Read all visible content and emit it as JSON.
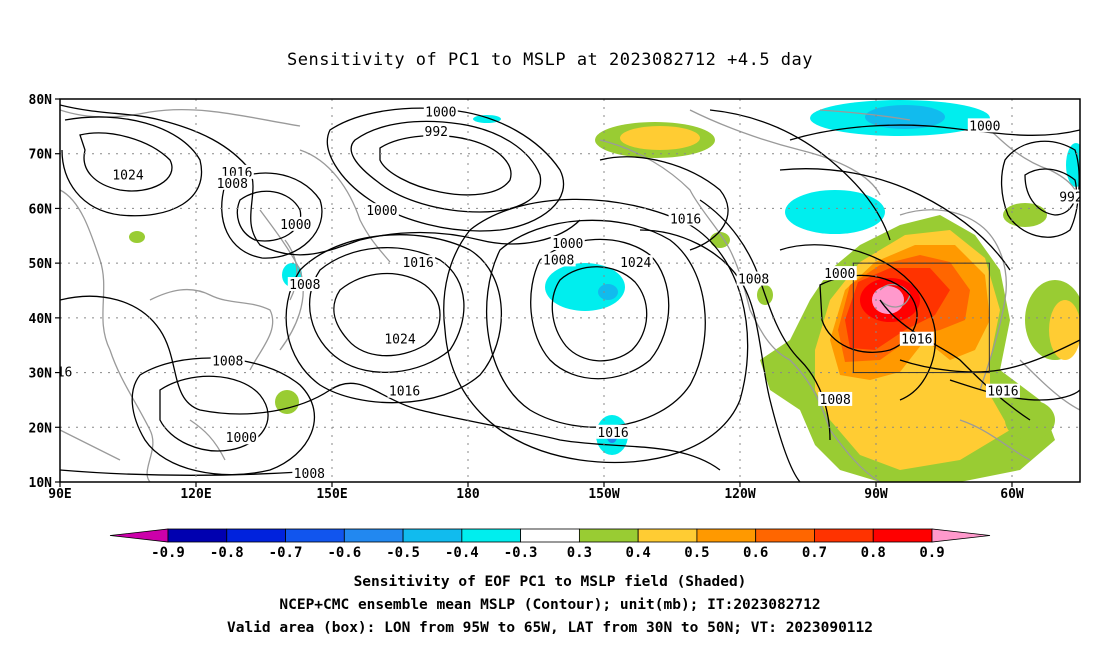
{
  "title": "Sensitivity of PC1 to MSLP at 2023082712 +4.5 day",
  "map": {
    "lat_labels": [
      "80N",
      "70N",
      "60N",
      "50N",
      "40N",
      "30N",
      "20N",
      "10N"
    ],
    "lon_labels": [
      "90E",
      "120E",
      "150E",
      "180",
      "150W",
      "120W",
      "90W",
      "60W"
    ],
    "lat_values": [
      80,
      70,
      60,
      50,
      40,
      30,
      20,
      10
    ],
    "lon_values": [
      90,
      120,
      150,
      180,
      210,
      240,
      270,
      300
    ],
    "extent": {
      "lon_min": 90,
      "lon_max": 315,
      "lat_min": 10,
      "lat_max": 80
    },
    "valid_box": {
      "lon_west": 265,
      "lon_east": 295,
      "lat_south": 30,
      "lat_north": 50
    },
    "contour_labels": [
      {
        "text": "1000",
        "lon": 174,
        "lat": 77.5
      },
      {
        "text": "992",
        "lon": 173,
        "lat": 74
      },
      {
        "text": "1000",
        "lon": 294,
        "lat": 75
      },
      {
        "text": "1024",
        "lon": 105,
        "lat": 66
      },
      {
        "text": "1016",
        "lon": 129,
        "lat": 66.5
      },
      {
        "text": "1008",
        "lon": 128,
        "lat": 64.5
      },
      {
        "text": "1000",
        "lon": 142,
        "lat": 57
      },
      {
        "text": "1000",
        "lon": 161,
        "lat": 59.5
      },
      {
        "text": "1016",
        "lon": 228,
        "lat": 58
      },
      {
        "text": "1000",
        "lon": 202,
        "lat": 53.5
      },
      {
        "text": "1008",
        "lon": 200,
        "lat": 50.5
      },
      {
        "text": "1024",
        "lon": 217,
        "lat": 50
      },
      {
        "text": "1016",
        "lon": 169,
        "lat": 50
      },
      {
        "text": "1008",
        "lon": 144,
        "lat": 46
      },
      {
        "text": "1008",
        "lon": 243,
        "lat": 47
      },
      {
        "text": "1000",
        "lon": 262,
        "lat": 48
      },
      {
        "text": "1024",
        "lon": 165,
        "lat": 36
      },
      {
        "text": "1016",
        "lon": 279,
        "lat": 36
      },
      {
        "text": "1008",
        "lon": 127,
        "lat": 32
      },
      {
        "text": "16",
        "lon": 91,
        "lat": 30
      },
      {
        "text": "1016",
        "lon": 166,
        "lat": 26.5
      },
      {
        "text": "1016",
        "lon": 298,
        "lat": 26.5
      },
      {
        "text": "1008",
        "lon": 261,
        "lat": 25
      },
      {
        "text": "1000",
        "lon": 130,
        "lat": 18
      },
      {
        "text": "1016",
        "lon": 212,
        "lat": 19
      },
      {
        "text": "1008",
        "lon": 145,
        "lat": 11.5
      },
      {
        "text": "992",
        "lon": 313,
        "lat": 62
      }
    ]
  },
  "colorbar": {
    "levels": [
      "-0.9",
      "-0.8",
      "-0.7",
      "-0.6",
      "-0.5",
      "-0.4",
      "-0.3",
      "0.3",
      "0.4",
      "0.5",
      "0.6",
      "0.7",
      "0.8",
      "0.9"
    ],
    "colors": [
      "#cc00aa",
      "#0000b0",
      "#0022dd",
      "#1155ee",
      "#2288f0",
      "#11bbee",
      "#00eeee",
      "#ffffff",
      "#99cc33",
      "#ffcc33",
      "#ff9900",
      "#ff6600",
      "#ff3300",
      "#ff0000",
      "#ff99cc"
    ]
  },
  "captions": {
    "line1": "Sensitivity of EOF PC1 to MSLP field (Shaded)",
    "line2": "NCEP+CMC ensemble mean MSLP (Contour); unit(mb); IT:2023082712",
    "line3": "Valid area (box): LON from 95W to 65W, LAT from 30N to 50N; VT: 2023090112"
  }
}
